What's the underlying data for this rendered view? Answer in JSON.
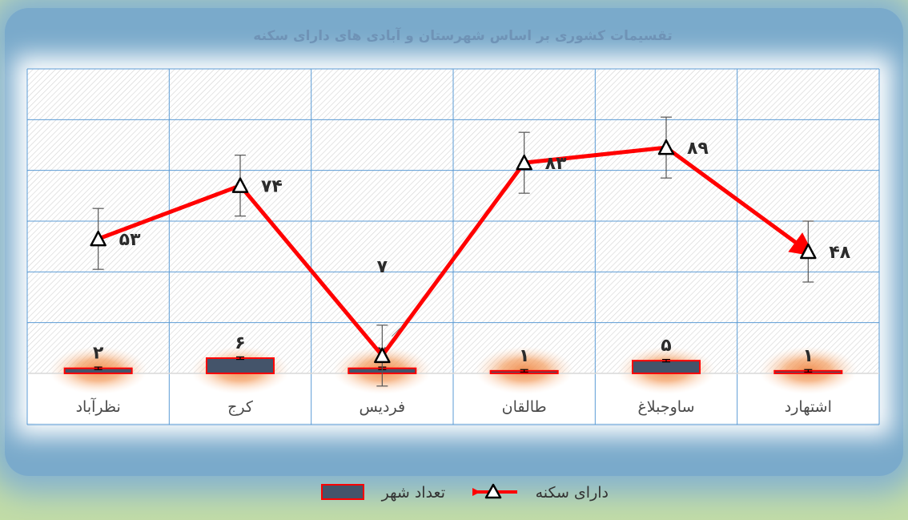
{
  "chart_data": {
    "type": "bar+line",
    "title": "تقسیمات کشوری بر اساس شهرستان و آبادی های دارای سکنه",
    "categories": [
      "اشتهارد",
      "ساوجبلاغ",
      "طالقان",
      "فردیس",
      "کرج",
      "نظرآباد"
    ],
    "series": [
      {
        "name": "تعداد شهر",
        "kind": "bar",
        "values": [
          1,
          5,
          1,
          2,
          6,
          2
        ],
        "value_labels": [
          "۱",
          "۵",
          "۱",
          "۲",
          "۶",
          "۲"
        ],
        "error": 0.5
      },
      {
        "name": "دارای سکنه",
        "kind": "line",
        "values": [
          48,
          89,
          83,
          7,
          74,
          53
        ],
        "value_labels": [
          "۴۸",
          "۸۹",
          "۸۳",
          "۷",
          "۷۴",
          "۵۳"
        ],
        "error": 12
      }
    ],
    "ylim": [
      0,
      120
    ],
    "grid": true,
    "legend_position": "bottom"
  },
  "colors": {
    "bar_fill": "#44546a",
    "bar_border": "#ff0000",
    "line": "#ff0000",
    "marker_fill": "#ffffff",
    "marker_stroke": "#000000",
    "grid": "#5b9bd5",
    "bar_glow": "#f4a46a"
  }
}
